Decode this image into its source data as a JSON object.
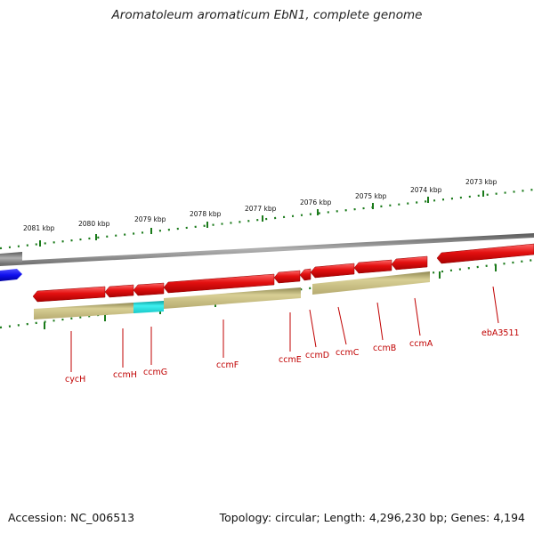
{
  "title": "Aromatoleum aromaticum EbN1, complete genome",
  "accession": "Accession: NC_006513",
  "topology": "Topology: circular; Length: 4,296,230 bp; Genes: 4,194",
  "colors": {
    "background": "#ffffff",
    "tick_major": "#1a7a1a",
    "backbone": "#8a8a8a",
    "gene_red": "#e31010",
    "gene_tan": "#c9bf85",
    "gene_cyan": "#22dddd",
    "gene_blue": "#1010ee",
    "label_red": "#c00000"
  },
  "scale": {
    "unit": "kbp",
    "ticks": [
      "2081 kbp",
      "2080 kbp",
      "2079 kbp",
      "2078 kbp",
      "2077 kbp",
      "2076 kbp",
      "2075 kbp",
      "2074 kbp",
      "2073 kbp"
    ]
  },
  "genes": [
    "cycH",
    "ccmH",
    "ccmG",
    "ccmF",
    "ccmE",
    "ccmD",
    "ccmC",
    "ccmB",
    "ccmA",
    "ebA3511"
  ]
}
